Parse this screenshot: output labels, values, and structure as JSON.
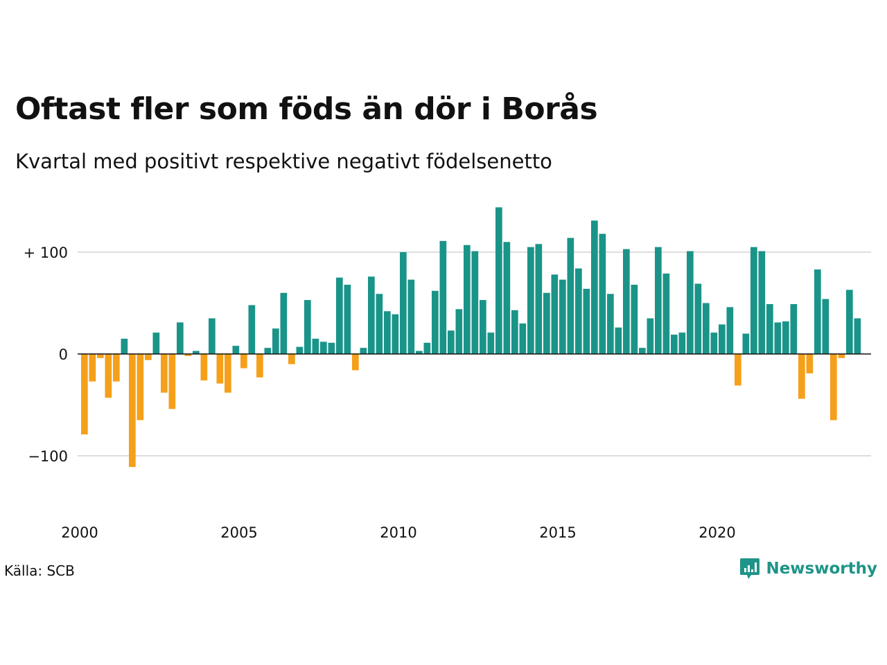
{
  "title": "Oftast fler som föds än dör i Borås",
  "subtitle": "Kvartal med positivt respektive negativt födelsenetto",
  "source": "Källa: SCB",
  "brand": {
    "name": "Newsworthy",
    "icon": "newsworthy-logo-icon",
    "color": "#1f9488"
  },
  "colors": {
    "positive": "#1a9488",
    "negative": "#f5a01a",
    "grid": "#dddddd",
    "baseline": "#111111"
  },
  "chart_data": {
    "type": "bar",
    "title": "Oftast fler som föds än dör i Borås",
    "subtitle": "Kvartal med positivt respektive negativt födelsenetto",
    "xlabel": "",
    "ylabel": "",
    "ylim": [
      -150,
      150
    ],
    "xlim": [
      2000,
      2025
    ],
    "grid": true,
    "y_ticks": [
      {
        "value": 100,
        "label": "+ 100"
      },
      {
        "value": 0,
        "label": "0"
      },
      {
        "value": -100,
        "label": "−100"
      }
    ],
    "x_ticks": [
      {
        "value": 2000,
        "label": "2000"
      },
      {
        "value": 2005,
        "label": "2005"
      },
      {
        "value": 2010,
        "label": "2010"
      },
      {
        "value": 2015,
        "label": "2015"
      },
      {
        "value": 2020,
        "label": "2020"
      }
    ],
    "start_year": 2000,
    "periods_per_year": 4,
    "values": [
      -79,
      -27,
      -4,
      -43,
      -27,
      15,
      -111,
      -65,
      -6,
      21,
      -38,
      -54,
      31,
      -2,
      3,
      -26,
      35,
      -29,
      -38,
      8,
      -14,
      48,
      -23,
      6,
      25,
      60,
      -10,
      7,
      53,
      15,
      12,
      11,
      75,
      68,
      -16,
      6,
      76,
      59,
      42,
      39,
      100,
      73,
      3,
      11,
      62,
      111,
      23,
      44,
      107,
      101,
      53,
      21,
      144,
      110,
      43,
      30,
      105,
      108,
      60,
      78,
      73,
      114,
      84,
      64,
      131,
      118,
      59,
      26,
      103,
      68,
      6,
      35,
      105,
      79,
      19,
      21,
      101,
      69,
      50,
      21,
      29,
      46,
      -31,
      20,
      105,
      101,
      49,
      31,
      32,
      49,
      -44,
      -19,
      83,
      54,
      -65,
      -4,
      63,
      35
    ]
  }
}
